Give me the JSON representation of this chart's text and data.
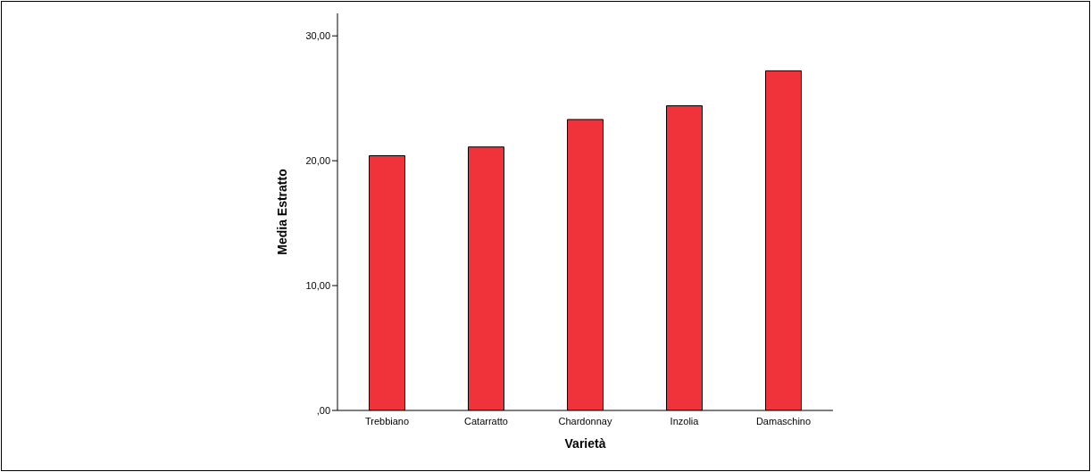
{
  "chart_data": {
    "type": "bar",
    "xlabel": "Varietà",
    "ylabel": "Media Estratto",
    "categories": [
      "Trebbiano",
      "Catarratto",
      "Chardonnay",
      "Inzolia",
      "Damaschino"
    ],
    "values": [
      20.4,
      21.1,
      23.3,
      24.4,
      27.2
    ],
    "color": "#f0323a",
    "ylim": [
      0,
      31.8
    ],
    "yticks": [
      {
        "value": 0,
        "label": ",00"
      },
      {
        "value": 10,
        "label": "10,00"
      },
      {
        "value": 20,
        "label": "20,00"
      },
      {
        "value": 30,
        "label": "30,00"
      }
    ],
    "grid": false
  }
}
